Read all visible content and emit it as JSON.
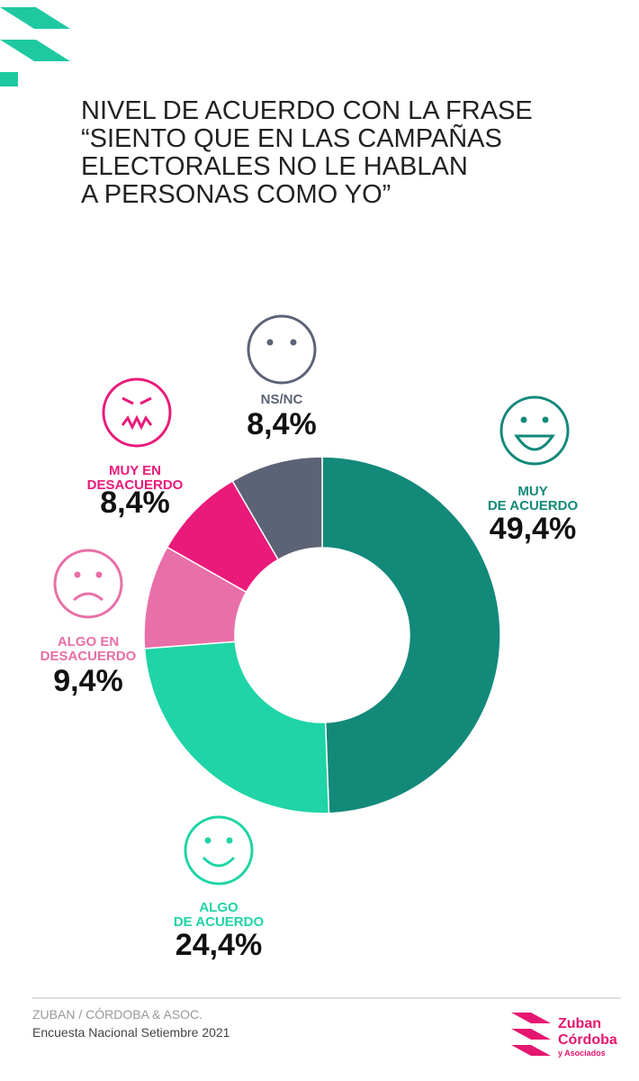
{
  "chart_data": {
    "type": "donut",
    "title": "NIVEL DE ACUERDO CON LA FRASE\n“SIENTO QUE EN LAS CAMPAÑAS\nELECTORALES NO LE HABLAN\nA PERSONAS COMO YO”",
    "categories": [
      "MUY\nDE ACUERDO",
      "ALGO\nDE ACUERDO",
      "ALGO EN\nDESACUERDO",
      "MUY EN\nDESACUERDO",
      "NS/NC"
    ],
    "values": [
      49.4,
      24.4,
      9.4,
      8.4,
      8.4
    ],
    "value_labels": [
      "49,4%",
      "24,4%",
      "9,4%",
      "8,4%",
      "8,4%"
    ],
    "colors": [
      "#13897a",
      "#1fd4a6",
      "#e86fa8",
      "#ea1a7b",
      "#5c6376"
    ]
  },
  "footer": {
    "source": "ZUBAN / CÓRDOBA & ASOC.",
    "note": "Encuesta Nacional Setiembre 2021"
  },
  "logo": {
    "line1": "Zuban",
    "line2": "Córdoba",
    "line3": "y Asociados"
  }
}
